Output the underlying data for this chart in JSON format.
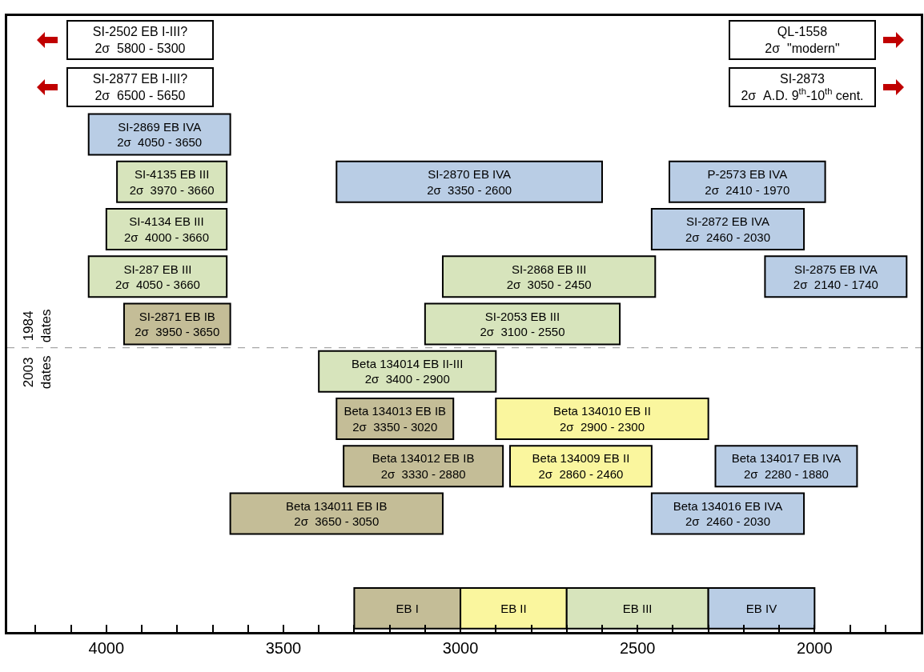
{
  "chart_data": {
    "type": "bar",
    "orientation": "horizontal",
    "tick_labels": "x",
    "categories": [
      null,
      null,
      null,
      null,
      null,
      null,
      null,
      null,
      null,
      null,
      null,
      null,
      null
    ],
    "series": [
      {
        "values": [
          null,
          null,
          400,
          310,
          340,
          390,
          300,
          500,
          330,
          450,
          600,
          null,
          300
        ],
        "base": [
          null,
          null,
          3650,
          3660,
          3660,
          3660,
          3650,
          2900,
          3020,
          2880,
          3050,
          null,
          3000
        ],
        "colors": [
          null,
          null,
          "#b9cde5",
          "#d7e4bc",
          "#d7e4bc",
          "#d7e4bc",
          "#c4bd97",
          "#d7e4bc",
          "#c4bd97",
          "#c4bd97",
          "#c4bd97",
          null,
          "#c4bd97"
        ],
        "value_labels": [
          null,
          null,
          "SI-2869 EB IVA\n2σ  4050 - 3650",
          "SI-4135 EB III\n2σ  3970 - 3660",
          "SI-4134 EB III\n2σ  4000 - 3660",
          "SI-287 EB III\n2σ  4050 - 3660",
          "SI-2871 EB IB\n2σ  3950 - 3650",
          "Beta 134014 EB II-III\n2σ  3400 - 2900",
          "Beta 134013 EB IB\n2σ  3350 - 3020",
          "Beta 134012 EB IB\n2σ  3330 - 2880",
          "Beta 134011 EB IB\n2σ  3650 - 3050",
          null,
          "EB I"
        ]
      },
      {
        "values": [
          null,
          null,
          null,
          750,
          null,
          600,
          550,
          null,
          600,
          400,
          null,
          null,
          300
        ],
        "base": [
          null,
          null,
          null,
          2600,
          null,
          2450,
          2550,
          null,
          2300,
          2460,
          null,
          null,
          2700
        ],
        "colors": [
          null,
          null,
          null,
          "#b9cde5",
          null,
          "#d7e4bc",
          "#d7e4bc",
          null,
          "#faf69e",
          "#faf69e",
          null,
          null,
          "#faf69e"
        ],
        "value_labels": [
          null,
          null,
          null,
          "SI-2870 EB IVA\n2σ  3350 - 2600",
          null,
          "SI-2868 EB III\n2σ  3050 - 2450",
          "SI-2053 EB III\n2σ  3100 - 2550",
          null,
          "Beta 134010 EB II\n2σ  2900 - 2300",
          "Beta 134009 EB II\n2σ  2860 - 2460",
          null,
          null,
          "EB II"
        ]
      },
      {
        "values": [
          null,
          null,
          null,
          440,
          430,
          400,
          null,
          null,
          null,
          400,
          430,
          null,
          400
        ],
        "base": [
          null,
          null,
          null,
          1970,
          2030,
          1740,
          null,
          null,
          null,
          1880,
          2030,
          null,
          2300
        ],
        "colors": [
          null,
          null,
          null,
          "#b9cde5",
          "#b9cde5",
          "#b9cde5",
          null,
          null,
          null,
          "#b9cde5",
          "#b9cde5",
          null,
          "#d7e4bc"
        ],
        "value_labels": [
          null,
          null,
          null,
          "P-2573 EB IVA\n2σ  2410 - 1970",
          "SI-2872 EB IVA\n2σ  2460 - 2030",
          "SI-2875 EB IVA\n2σ  2140 - 1740",
          null,
          null,
          null,
          "Beta 134017 EB IVA\n2σ  2280 - 1880",
          "Beta 134016 EB IVA\n2σ  2460 - 2030",
          null,
          "EB III"
        ]
      },
      {
        "values": [
          null,
          null,
          null,
          null,
          null,
          null,
          null,
          null,
          null,
          null,
          null,
          null,
          300
        ],
        "base": [
          null,
          null,
          null,
          null,
          null,
          null,
          null,
          null,
          null,
          null,
          null,
          null,
          2000
        ],
        "colors": [
          null,
          null,
          null,
          null,
          null,
          null,
          null,
          null,
          null,
          null,
          null,
          null,
          "#b9cde5"
        ],
        "value_labels": [
          null,
          null,
          null,
          null,
          null,
          null,
          null,
          null,
          null,
          null,
          null,
          null,
          "EB IV"
        ]
      }
    ],
    "xlim": [
      4280,
      1700
    ],
    "xticks": [
      {
        "value": 4200,
        "label": null
      },
      {
        "value": 4100,
        "label": null
      },
      4000,
      {
        "value": 3900,
        "label": null
      },
      {
        "value": 3800,
        "label": null
      },
      {
        "value": 3700,
        "label": null
      },
      {
        "value": 3600,
        "label": null
      },
      3500,
      {
        "value": 3400,
        "label": null
      },
      {
        "value": 3300,
        "label": null
      },
      {
        "value": 3200,
        "label": null
      },
      {
        "value": 3100,
        "label": null
      },
      3000,
      {
        "value": 2900,
        "label": null
      },
      {
        "value": 2800,
        "label": null
      },
      {
        "value": 2700,
        "label": null
      },
      {
        "value": 2600,
        "label": null
      },
      2500,
      {
        "value": 2400,
        "label": null
      },
      {
        "value": 2300,
        "label": null
      },
      {
        "value": 2200,
        "label": null
      },
      {
        "value": 2100,
        "label": null
      },
      2000,
      {
        "value": 1900,
        "label": null
      },
      {
        "value": 1800,
        "label": null
      }
    ],
    "annotations": [
      "SI-2502 EB I-III?\n2σ  5800 - 5300",
      "SI-2877 EB I-III?\n2σ  6500 - 5650",
      "QL-1558\n2σ  \"modern\"",
      "SI-2873\n2σ  A.D. 9$^{th}$-10$^{th}$ cent.",
      "1984\ndates",
      "2003\ndates"
    ]
  }
}
